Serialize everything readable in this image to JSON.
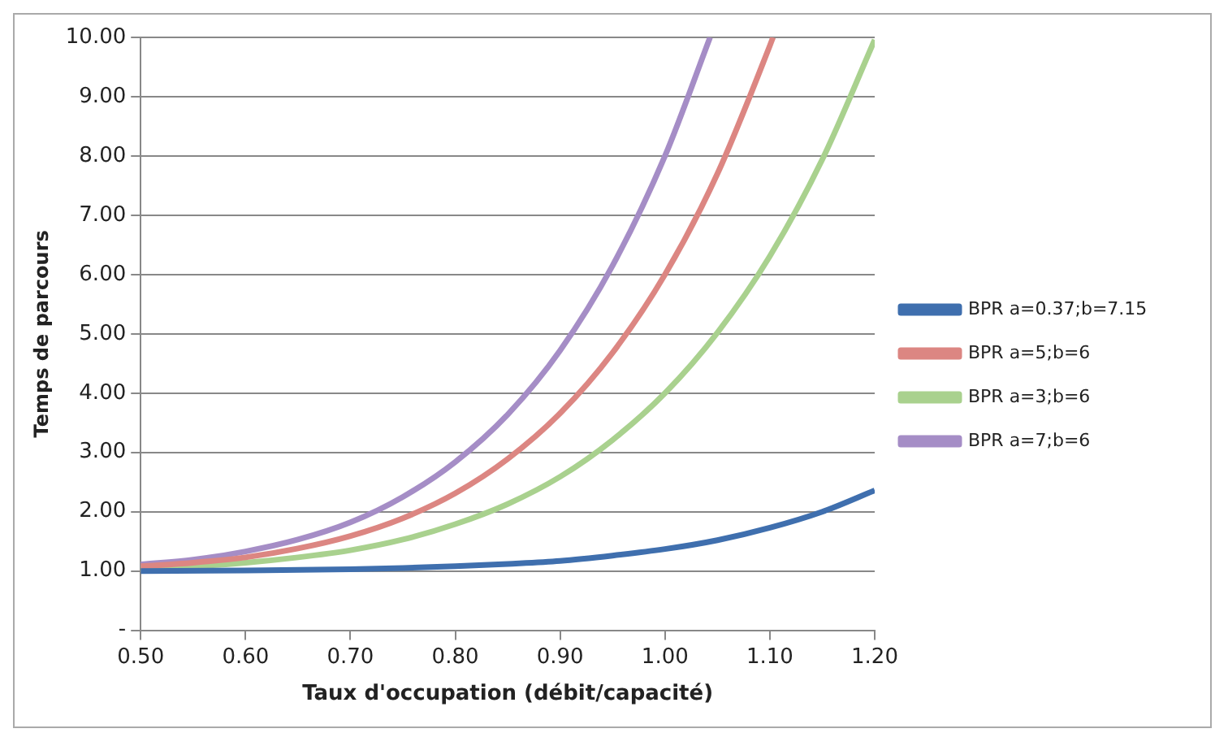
{
  "chart_data": {
    "type": "line",
    "xlabel": "Taux d'occupation (débit/capacité)",
    "ylabel": "Temps de parcours",
    "xlim": [
      0.5,
      1.2
    ],
    "ylim": [
      0,
      10
    ],
    "xticks": [
      {
        "value": 0.5,
        "label": "0.50"
      },
      {
        "value": 0.6,
        "label": "0.60"
      },
      {
        "value": 0.7,
        "label": "0.70"
      },
      {
        "value": 0.8,
        "label": "0.80"
      },
      {
        "value": 0.9,
        "label": "0.90"
      },
      {
        "value": 1.0,
        "label": "1.00"
      },
      {
        "value": 1.1,
        "label": "1.10"
      },
      {
        "value": 1.2,
        "label": "1.20"
      }
    ],
    "yticks": [
      {
        "value": 0,
        "label": "-"
      },
      {
        "value": 1,
        "label": "1.00"
      },
      {
        "value": 2,
        "label": "2.00"
      },
      {
        "value": 3,
        "label": "3.00"
      },
      {
        "value": 4,
        "label": "4.00"
      },
      {
        "value": 5,
        "label": "5.00"
      },
      {
        "value": 6,
        "label": "6.00"
      },
      {
        "value": 7,
        "label": "7.00"
      },
      {
        "value": 8,
        "label": "8.00"
      },
      {
        "value": 9,
        "label": "9.00"
      },
      {
        "value": 10,
        "label": "10.00"
      }
    ],
    "grid": "y",
    "legend": "right",
    "marker": "none",
    "line_style": "solid",
    "series": [
      {
        "name": "BPR a=0.37;b=7.15",
        "color": "#3f6fae",
        "x": [
          0.5,
          0.6,
          0.7,
          0.75,
          0.8,
          0.85,
          0.9,
          0.95,
          1.0,
          1.05,
          1.1,
          1.15,
          1.2
        ],
        "values": [
          1.0,
          1.01,
          1.03,
          1.05,
          1.08,
          1.12,
          1.17,
          1.26,
          1.37,
          1.52,
          1.73,
          2.0,
          2.36
        ]
      },
      {
        "name": "BPR a=5;b=6",
        "color": "#dc8682",
        "x": [
          0.5,
          0.55,
          0.6,
          0.65,
          0.7,
          0.75,
          0.8,
          0.85,
          0.9,
          0.95,
          1.0,
          1.05,
          1.1,
          1.103
        ],
        "values": [
          1.08,
          1.14,
          1.23,
          1.38,
          1.59,
          1.89,
          2.31,
          2.89,
          3.66,
          4.68,
          6.0,
          7.7,
          9.86,
          10
        ]
      },
      {
        "name": "BPR a=3;b=6",
        "color": "#a9d18e",
        "x": [
          0.5,
          0.55,
          0.6,
          0.65,
          0.7,
          0.75,
          0.8,
          0.85,
          0.9,
          0.95,
          1.0,
          1.05,
          1.1,
          1.15,
          1.2
        ],
        "values": [
          1.05,
          1.08,
          1.14,
          1.23,
          1.35,
          1.53,
          1.79,
          2.13,
          2.59,
          3.21,
          4.0,
          5.02,
          6.31,
          7.94,
          9.96
        ]
      },
      {
        "name": "BPR a=7;b=6",
        "color": "#a58dc6",
        "x": [
          0.5,
          0.55,
          0.6,
          0.65,
          0.7,
          0.75,
          0.8,
          0.85,
          0.9,
          0.95,
          1.0,
          1.043
        ],
        "values": [
          1.11,
          1.19,
          1.33,
          1.53,
          1.82,
          2.25,
          2.84,
          3.64,
          4.72,
          6.15,
          8.0,
          10
        ]
      }
    ]
  }
}
